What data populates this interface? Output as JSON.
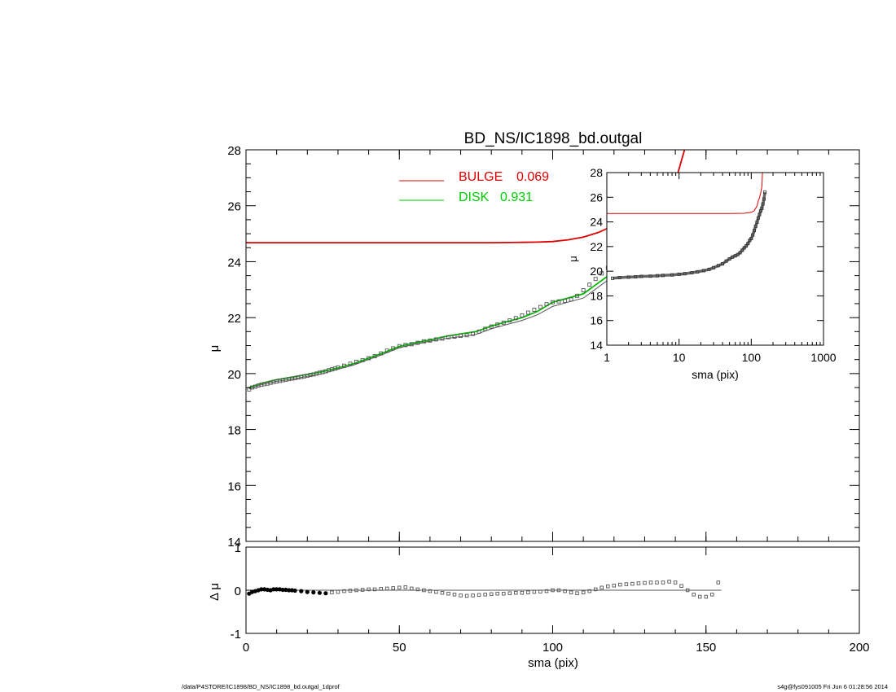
{
  "chart_data": [
    {
      "type": "scatter",
      "panel": "main",
      "title": "BD_NS/IC1898_bd.outgal",
      "xlabel": "",
      "ylabel": "μ",
      "xlim": [
        0,
        200
      ],
      "ylim": [
        28.0,
        14.0
      ],
      "yticks": [
        "14",
        "16",
        "18",
        "20",
        "22",
        "24",
        "26",
        "28"
      ],
      "legend_position": "top-center",
      "legend": [
        {
          "label": "BULGE",
          "value": "0.069",
          "color": "#dd0000"
        },
        {
          "label": "DISK",
          "value": "0.931",
          "color": "#00cc00"
        }
      ],
      "series": [
        {
          "name": "data",
          "kind": "points",
          "color": "#555555",
          "x": [
            1,
            2,
            3,
            4,
            5,
            6,
            7,
            8,
            9,
            10,
            11,
            12,
            13,
            14,
            15,
            16,
            17,
            18,
            19,
            20,
            21,
            22,
            23,
            24,
            25,
            26,
            27,
            28,
            29,
            30,
            32,
            34,
            36,
            38,
            40,
            42,
            44,
            46,
            48,
            50,
            52,
            54,
            56,
            58,
            60,
            62,
            64,
            66,
            68,
            70,
            72,
            74,
            76,
            78,
            80,
            82,
            84,
            86,
            88,
            90,
            92,
            94,
            96,
            98,
            100,
            102,
            104,
            106,
            108,
            110,
            112,
            114,
            116,
            118,
            120,
            122,
            124,
            126,
            128,
            130,
            132,
            134,
            136,
            138,
            140,
            142,
            144,
            146,
            148,
            150,
            152,
            154
          ],
          "y": [
            19.43,
            19.5,
            19.53,
            19.57,
            19.6,
            19.62,
            19.64,
            19.67,
            19.7,
            19.72,
            19.74,
            19.76,
            19.78,
            19.8,
            19.82,
            19.84,
            19.86,
            19.88,
            19.9,
            19.92,
            19.95,
            19.97,
            20.0,
            20.03,
            20.05,
            20.08,
            20.12,
            20.15,
            20.18,
            20.22,
            20.28,
            20.35,
            20.42,
            20.48,
            20.55,
            20.62,
            20.72,
            20.82,
            20.9,
            20.98,
            21.02,
            21.05,
            21.1,
            21.15,
            21.18,
            21.22,
            21.25,
            21.3,
            21.32,
            21.35,
            21.37,
            21.42,
            21.5,
            21.6,
            21.68,
            21.75,
            21.82,
            21.9,
            21.98,
            22.08,
            22.18,
            22.28,
            22.38,
            22.48,
            22.55,
            22.58,
            22.6,
            22.65,
            22.78,
            22.98,
            23.18,
            23.38,
            23.58,
            23.78,
            23.98,
            24.15,
            24.35,
            24.5,
            24.6,
            24.7,
            24.8,
            24.92,
            24.98,
            25.0,
            25.1,
            25.3,
            25.45,
            25.6,
            25.75,
            25.95,
            26.15,
            26.4
          ]
        },
        {
          "name": "model",
          "kind": "line",
          "color": "#555555",
          "x": [
            1,
            5,
            10,
            15,
            20,
            25,
            30,
            35,
            40,
            45,
            50,
            55,
            60,
            65,
            70,
            75,
            80,
            85,
            90,
            95,
            100,
            105,
            110,
            115,
            120,
            125,
            130,
            135,
            140,
            145,
            150,
            155
          ],
          "y": [
            19.45,
            19.6,
            19.72,
            19.8,
            19.9,
            20.0,
            20.15,
            20.3,
            20.5,
            20.7,
            20.92,
            21.05,
            21.15,
            21.25,
            21.32,
            21.4,
            21.6,
            21.75,
            21.9,
            22.1,
            22.4,
            22.55,
            22.7,
            23.1,
            23.5,
            24.05,
            24.3,
            24.6,
            24.8,
            25.3,
            25.8,
            26.3
          ]
        },
        {
          "name": "",
          "kind": "line",
          "color": "#00bb00",
          "x": [
            1,
            5,
            10,
            15,
            20,
            25,
            30,
            35,
            40,
            45,
            50,
            55,
            60,
            65,
            70,
            75,
            80,
            85,
            90,
            95,
            100,
            105,
            110,
            115,
            120,
            125,
            130,
            135,
            140,
            145,
            150,
            155
          ],
          "y": [
            19.5,
            19.65,
            19.78,
            19.87,
            19.97,
            20.07,
            20.2,
            20.35,
            20.55,
            20.75,
            20.97,
            21.1,
            21.2,
            21.33,
            21.42,
            21.5,
            21.7,
            21.85,
            22.0,
            22.22,
            22.55,
            22.7,
            22.85,
            23.25,
            23.65,
            24.2,
            24.45,
            24.75,
            24.95,
            25.4,
            25.85,
            26.3
          ]
        },
        {
          "name": "",
          "kind": "line",
          "color": "#dd0000",
          "x": [
            0,
            20,
            40,
            60,
            80,
            90,
            95,
            100,
            105,
            110,
            115,
            120,
            122,
            125,
            130,
            135,
            138,
            140,
            143
          ],
          "y": [
            24.68,
            24.68,
            24.68,
            24.68,
            24.68,
            24.69,
            24.7,
            24.72,
            24.78,
            24.88,
            25.05,
            25.3,
            25.5,
            25.7,
            25.95,
            26.35,
            26.75,
            26.85,
            28.0
          ]
        }
      ]
    },
    {
      "type": "scatter",
      "panel": "residual",
      "xlabel": "sma (pix)",
      "ylabel": "Δ μ",
      "xlim": [
        0,
        200
      ],
      "ylim": [
        -1,
        1
      ],
      "xticks": [
        "0",
        "50",
        "100",
        "150",
        "200"
      ],
      "yticks": [
        "1",
        "0",
        "-1"
      ],
      "series": [
        {
          "name": "residual",
          "kind": "points",
          "color": "#555555",
          "x": [
            1,
            2,
            3,
            4,
            5,
            6,
            7,
            8,
            9,
            10,
            11,
            12,
            13,
            14,
            15,
            16,
            18,
            20,
            22,
            24,
            26,
            28,
            30,
            32,
            34,
            36,
            38,
            40,
            42,
            44,
            46,
            48,
            50,
            52,
            54,
            56,
            58,
            60,
            62,
            64,
            66,
            68,
            70,
            72,
            74,
            76,
            78,
            80,
            82,
            84,
            86,
            88,
            90,
            92,
            94,
            96,
            98,
            100,
            102,
            104,
            106,
            108,
            110,
            112,
            114,
            116,
            118,
            120,
            122,
            124,
            126,
            128,
            130,
            132,
            134,
            136,
            138,
            140,
            142,
            144,
            146,
            148,
            150,
            152,
            154
          ],
          "y": [
            -0.08,
            -0.04,
            -0.02,
            0.0,
            0.02,
            0.02,
            0.01,
            0.0,
            0.02,
            0.02,
            0.02,
            0.01,
            0.01,
            0.0,
            0.0,
            -0.01,
            -0.02,
            -0.04,
            -0.05,
            -0.06,
            -0.07,
            -0.05,
            -0.04,
            -0.02,
            -0.01,
            0.0,
            0.01,
            0.02,
            0.02,
            0.03,
            0.04,
            0.05,
            0.06,
            0.07,
            0.04,
            0.02,
            0.0,
            -0.02,
            -0.04,
            -0.06,
            -0.08,
            -0.1,
            -0.12,
            -0.13,
            -0.12,
            -0.11,
            -0.1,
            -0.09,
            -0.08,
            -0.08,
            -0.07,
            -0.06,
            -0.06,
            -0.05,
            -0.04,
            -0.03,
            -0.02,
            0.0,
            0.0,
            -0.02,
            -0.05,
            -0.07,
            -0.05,
            -0.02,
            0.02,
            0.06,
            0.09,
            0.11,
            0.13,
            0.14,
            0.15,
            0.16,
            0.17,
            0.18,
            0.18,
            0.18,
            0.2,
            0.18,
            0.1,
            0.0,
            -0.1,
            -0.15,
            -0.15,
            -0.1,
            0.18
          ]
        },
        {
          "name": "zero",
          "kind": "line",
          "color": "#555555",
          "x": [
            0,
            155
          ],
          "y": [
            0,
            0
          ]
        }
      ]
    },
    {
      "type": "scatter",
      "panel": "inset",
      "xlabel": "sma (pix)",
      "ylabel": "μ",
      "xscale": "log",
      "xlim": [
        1,
        1000
      ],
      "ylim": [
        28,
        14
      ],
      "xticks": [
        "1",
        "10",
        "100",
        "1000"
      ],
      "yticks": [
        "14",
        "16",
        "18",
        "20",
        "22",
        "24",
        "26",
        "28"
      ],
      "series": [
        {
          "name": "data",
          "kind": "points",
          "color": "#555555",
          "x": [
            1.2,
            1.5,
            2,
            2.5,
            3,
            4,
            5,
            6,
            8,
            10,
            12,
            15,
            18,
            22,
            26,
            30,
            35,
            40,
            45,
            50,
            55,
            60,
            65,
            70,
            75,
            80,
            85,
            90,
            95,
            100,
            105,
            110,
            115,
            120,
            125,
            130,
            135,
            140,
            145,
            150,
            154
          ],
          "y": [
            19.43,
            19.48,
            19.52,
            19.55,
            19.58,
            19.6,
            19.63,
            19.66,
            19.7,
            19.75,
            19.8,
            19.88,
            19.95,
            20.05,
            20.15,
            20.28,
            20.45,
            20.6,
            20.82,
            21.0,
            21.15,
            21.25,
            21.35,
            21.5,
            21.7,
            21.9,
            22.05,
            22.25,
            22.5,
            22.65,
            22.95,
            23.3,
            23.65,
            23.98,
            24.3,
            24.6,
            24.9,
            25.1,
            25.45,
            25.85,
            26.4
          ]
        },
        {
          "name": "",
          "kind": "line",
          "color": "#dd0000",
          "x": [
            1,
            10,
            50,
            80,
            100,
            110,
            120,
            125,
            130,
            135,
            140,
            143
          ],
          "y": [
            24.68,
            24.68,
            24.68,
            24.7,
            24.78,
            24.9,
            25.3,
            25.7,
            25.95,
            26.35,
            26.85,
            28.0
          ]
        }
      ]
    }
  ],
  "footer": {
    "left": "/data/P4STORE/IC1898/BD_NS/IC1898_bd.outgal_1dprof",
    "right": "s4g@fys091005  Fri Jun  6 01:28:56 2014"
  }
}
